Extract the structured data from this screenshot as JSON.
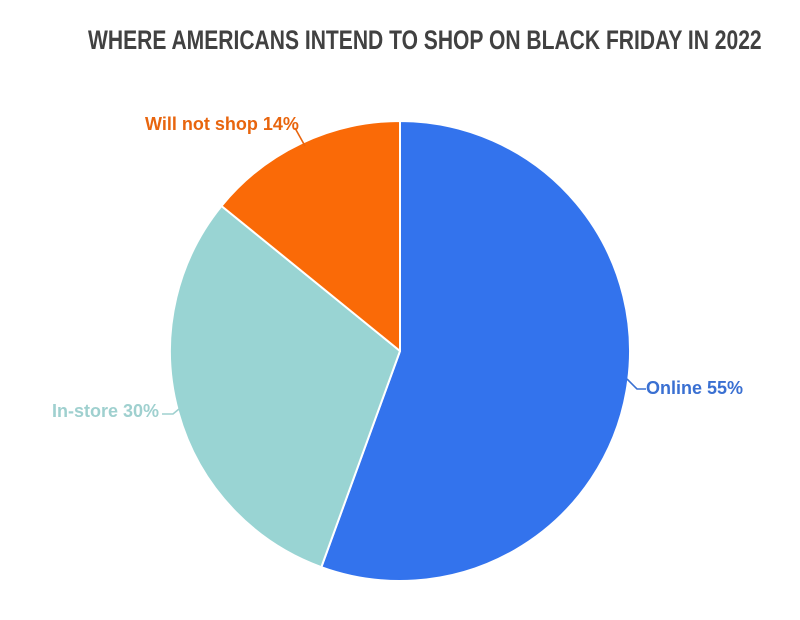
{
  "page": {
    "background_color": "#ffffff"
  },
  "chart_data": {
    "type": "pie",
    "title": "WHERE AMERICANS INTEND TO SHOP ON BLACK FRIDAY IN 2022",
    "title_color": "#414141",
    "legend_position": "outside-labels",
    "start_angle_deg": 0,
    "direction": "clockwise",
    "slice_border_color": "#ffffff",
    "slices": [
      {
        "label": "Online",
        "value": 55,
        "display": "Online 55%",
        "color": "#3373ed",
        "label_color": "#3a70d2"
      },
      {
        "label": "In-store",
        "value": 30,
        "display": "In-store 30%",
        "color": "#99d4d3",
        "label_color": "#9fd0cf"
      },
      {
        "label": "Will not shop",
        "value": 14,
        "display": "Will not shop 14%",
        "color": "#fa6a07",
        "label_color": "#e8650e"
      }
    ]
  }
}
